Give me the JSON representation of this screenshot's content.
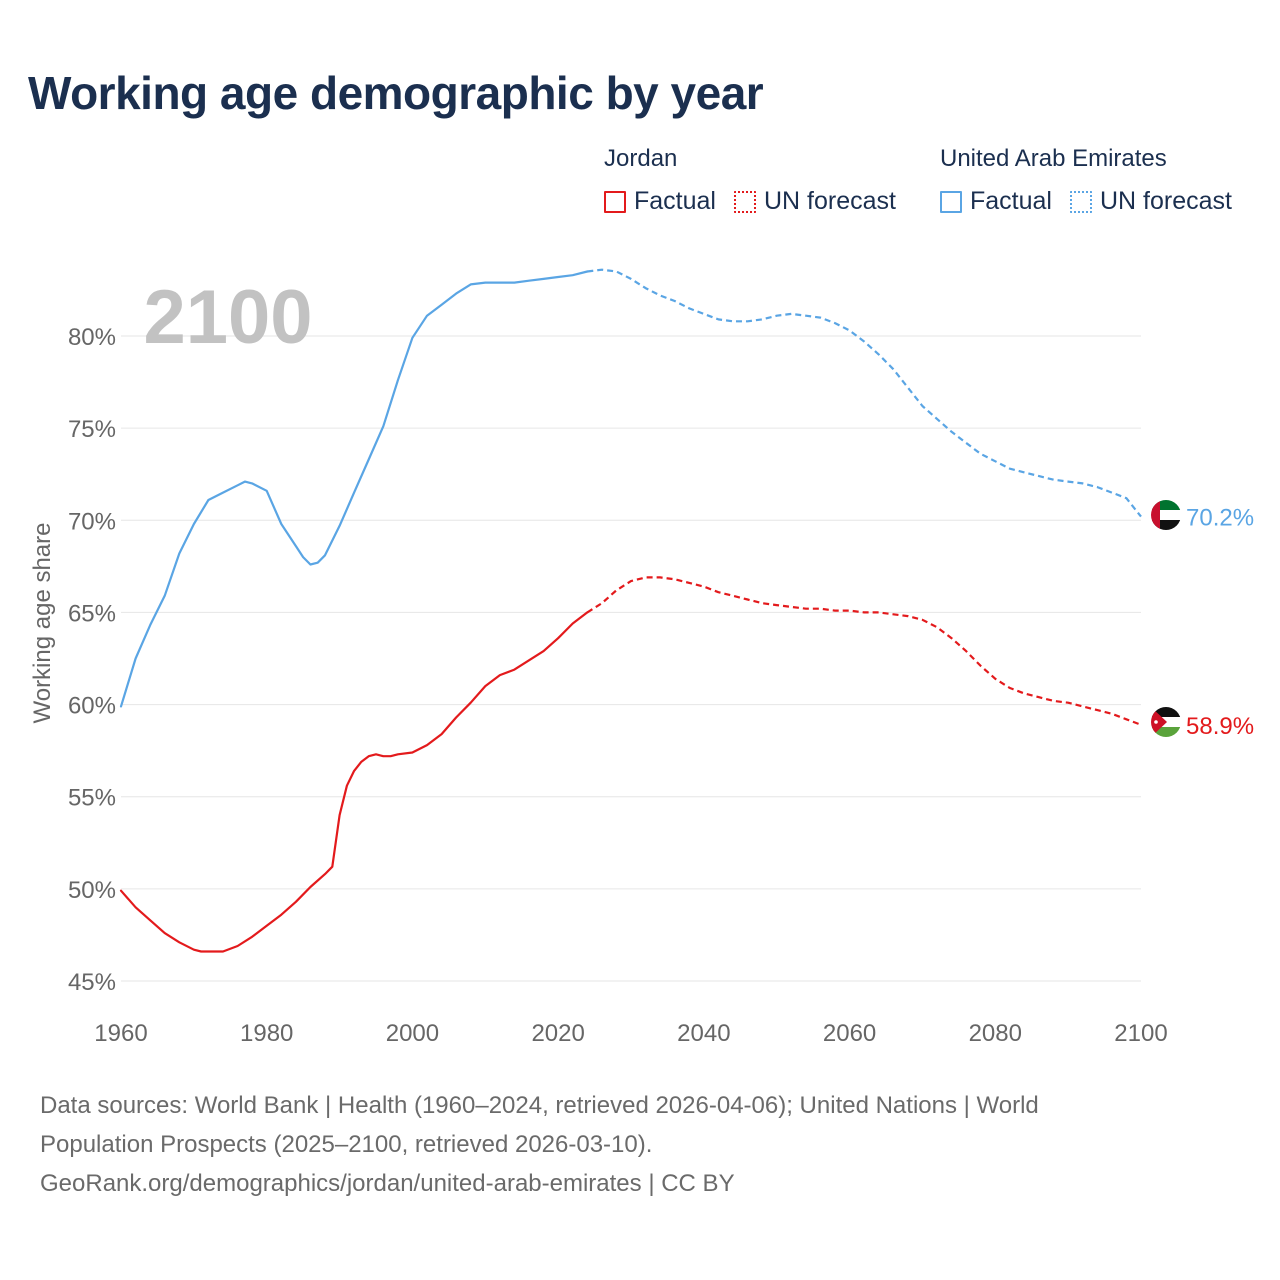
{
  "title": "Working age demographic by year",
  "legend": [
    {
      "country": "Jordan",
      "factual_label": "Factual",
      "forecast_label": "UN forecast",
      "color": "#e31a1c"
    },
    {
      "country": "United Arab Emirates",
      "factual_label": "Factual",
      "forecast_label": "UN forecast",
      "color": "#5aa5e4"
    }
  ],
  "footer": {
    "line1": "Data sources: World Bank | Health (1960–2024, retrieved 2026-04-06); United Nations | World",
    "line2": "Population Prospects (2025–2100, retrieved 2026-03-10).",
    "line3": "GeoRank.org/demographics/jordan/united-arab-emirates | CC BY"
  },
  "chart_data": {
    "type": "line",
    "title": "Working age demographic by year",
    "current_year_label": "2100",
    "xlabel": "",
    "ylabel": "Working age share",
    "xlim": [
      1960,
      2100
    ],
    "ylim": [
      44,
      84
    ],
    "x_ticks": [
      1960,
      1980,
      2000,
      2020,
      2040,
      2060,
      2080,
      2100
    ],
    "x_tick_labels": [
      "1960",
      "1980",
      "2000",
      "2020",
      "2040",
      "2060",
      "2080",
      "2100"
    ],
    "y_ticks": [
      45,
      50,
      55,
      60,
      65,
      70,
      75,
      80
    ],
    "y_tick_labels": [
      "45%",
      "50%",
      "55%",
      "60%",
      "65%",
      "70%",
      "75%",
      "80%"
    ],
    "grid": true,
    "series": [
      {
        "name": "Jordan",
        "color": "#e31a1c",
        "end_label": "58.9%",
        "flag": "jordan-flag",
        "factual": {
          "x": [
            1960,
            1962,
            1964,
            1966,
            1968,
            1970,
            1971,
            1972,
            1974,
            1976,
            1978,
            1980,
            1982,
            1984,
            1986,
            1988,
            1989,
            1990,
            1991,
            1992,
            1993,
            1994,
            1995,
            1996,
            1997,
            1998,
            2000,
            2002,
            2004,
            2006,
            2008,
            2010,
            2012,
            2014,
            2016,
            2018,
            2020,
            2022,
            2024
          ],
          "y": [
            49.9,
            49.0,
            48.3,
            47.6,
            47.1,
            46.7,
            46.6,
            46.6,
            46.6,
            46.9,
            47.4,
            48.0,
            48.6,
            49.3,
            50.1,
            50.8,
            51.2,
            54.0,
            55.6,
            56.4,
            56.9,
            57.2,
            57.3,
            57.2,
            57.2,
            57.3,
            57.4,
            57.8,
            58.4,
            59.3,
            60.1,
            61.0,
            61.6,
            61.9,
            62.4,
            62.9,
            63.6,
            64.4,
            65.0
          ],
          "line_style": "solid"
        },
        "forecast": {
          "x": [
            2024,
            2026,
            2028,
            2030,
            2032,
            2034,
            2036,
            2038,
            2040,
            2042,
            2044,
            2046,
            2048,
            2050,
            2052,
            2054,
            2056,
            2058,
            2060,
            2062,
            2064,
            2066,
            2068,
            2070,
            2072,
            2074,
            2076,
            2078,
            2080,
            2082,
            2084,
            2086,
            2088,
            2090,
            2092,
            2094,
            2096,
            2098,
            2100
          ],
          "y": [
            65.0,
            65.5,
            66.2,
            66.7,
            66.9,
            66.9,
            66.8,
            66.6,
            66.4,
            66.1,
            65.9,
            65.7,
            65.5,
            65.4,
            65.3,
            65.2,
            65.2,
            65.1,
            65.1,
            65.0,
            65.0,
            64.9,
            64.8,
            64.6,
            64.2,
            63.6,
            62.9,
            62.1,
            61.4,
            60.9,
            60.6,
            60.4,
            60.2,
            60.1,
            59.9,
            59.7,
            59.5,
            59.2,
            58.9
          ],
          "line_style": "dashed"
        }
      },
      {
        "name": "United Arab Emirates",
        "color": "#5aa5e4",
        "end_label": "70.2%",
        "flag": "uae-flag",
        "factual": {
          "x": [
            1960,
            1962,
            1964,
            1966,
            1968,
            1970,
            1972,
            1974,
            1976,
            1977,
            1978,
            1980,
            1982,
            1984,
            1985,
            1986,
            1987,
            1988,
            1990,
            1992,
            1994,
            1996,
            1998,
            2000,
            2002,
            2004,
            2006,
            2008,
            2010,
            2012,
            2014,
            2016,
            2018,
            2020,
            2022,
            2024
          ],
          "y": [
            59.9,
            62.5,
            64.3,
            65.9,
            68.2,
            69.8,
            71.1,
            71.5,
            71.9,
            72.1,
            72.0,
            71.6,
            69.8,
            68.6,
            68.0,
            67.6,
            67.7,
            68.1,
            69.7,
            71.5,
            73.3,
            75.1,
            77.6,
            79.9,
            81.1,
            81.7,
            82.3,
            82.8,
            82.9,
            82.9,
            82.9,
            83.0,
            83.1,
            83.2,
            83.3,
            83.5
          ],
          "line_style": "solid"
        },
        "forecast": {
          "x": [
            2024,
            2026,
            2028,
            2030,
            2032,
            2034,
            2036,
            2038,
            2040,
            2042,
            2044,
            2046,
            2048,
            2050,
            2052,
            2054,
            2056,
            2058,
            2060,
            2062,
            2064,
            2066,
            2068,
            2070,
            2072,
            2074,
            2076,
            2078,
            2080,
            2082,
            2084,
            2086,
            2088,
            2090,
            2092,
            2094,
            2096,
            2098,
            2100
          ],
          "y": [
            83.5,
            83.6,
            83.5,
            83.1,
            82.6,
            82.2,
            81.9,
            81.5,
            81.2,
            80.9,
            80.8,
            80.8,
            80.9,
            81.1,
            81.2,
            81.1,
            81.0,
            80.7,
            80.3,
            79.7,
            79.0,
            78.2,
            77.2,
            76.2,
            75.5,
            74.8,
            74.2,
            73.6,
            73.2,
            72.8,
            72.6,
            72.4,
            72.2,
            72.1,
            72.0,
            71.8,
            71.5,
            71.2,
            70.2
          ],
          "line_style": "dashed"
        }
      }
    ]
  }
}
